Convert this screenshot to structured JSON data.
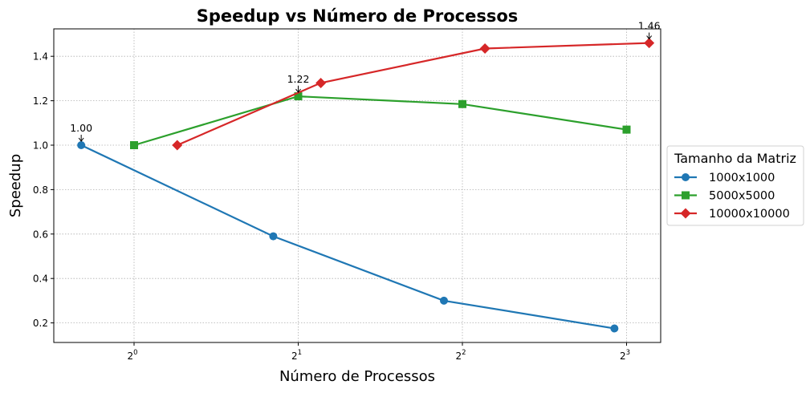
{
  "chart_data": {
    "type": "line",
    "title": "Speedup vs Número de Processos",
    "xlabel": "Número de Processos",
    "ylabel": "Speedup",
    "xscale": "log2",
    "x_ticks": [
      1,
      2,
      4,
      8
    ],
    "x_tick_labels": [
      {
        "base": "2",
        "exp": "0"
      },
      {
        "base": "2",
        "exp": "1"
      },
      {
        "base": "2",
        "exp": "2"
      },
      {
        "base": "2",
        "exp": "3"
      }
    ],
    "y_ticks": [
      0.2,
      0.4,
      0.6,
      0.8,
      1.0,
      1.2,
      1.4
    ],
    "y_tick_labels": [
      "0.2",
      "0.4",
      "0.6",
      "0.8",
      "1.0",
      "1.2",
      "1.4"
    ],
    "ylim": [
      0.115,
      1.525
    ],
    "grid": true,
    "legend": {
      "title": "Tamanho da Matriz",
      "placement": "outside right"
    },
    "series": [
      {
        "name": "1000x1000",
        "color": "#1f77b4",
        "marker": "circle",
        "points": [
          {
            "x": 0.8,
            "y": 1.0
          },
          {
            "x": 1.8,
            "y": 0.59
          },
          {
            "x": 3.7,
            "y": 0.3
          },
          {
            "x": 7.6,
            "y": 0.175
          }
        ]
      },
      {
        "name": "5000x5000",
        "color": "#2ca02c",
        "marker": "square",
        "points": [
          {
            "x": 1.0,
            "y": 1.0
          },
          {
            "x": 2.0,
            "y": 1.22
          },
          {
            "x": 4.0,
            "y": 1.185
          },
          {
            "x": 8.0,
            "y": 1.07
          }
        ]
      },
      {
        "name": "10000x10000",
        "color": "#d62728",
        "marker": "diamond",
        "points": [
          {
            "x": 1.2,
            "y": 1.0
          },
          {
            "x": 2.2,
            "y": 1.28
          },
          {
            "x": 4.4,
            "y": 1.435
          },
          {
            "x": 8.8,
            "y": 1.46
          }
        ]
      }
    ],
    "annotations": [
      {
        "text": "1.00",
        "x": 0.8,
        "y": 1.0
      },
      {
        "text": "1.22",
        "x": 2.0,
        "y": 1.22
      },
      {
        "text": "1.46",
        "x": 8.8,
        "y": 1.46
      }
    ]
  }
}
